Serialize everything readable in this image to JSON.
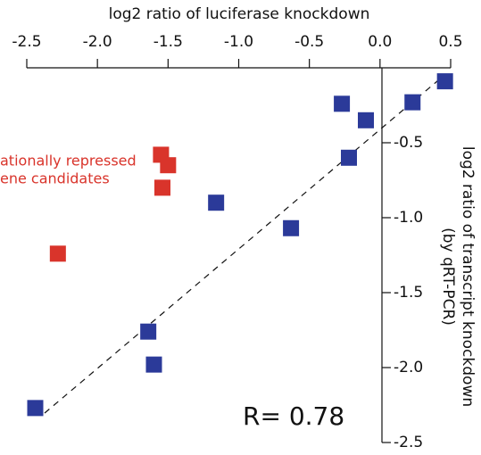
{
  "chart_data": {
    "type": "scatter",
    "x_label": "log2 ratio of luciferase knockdown",
    "y_label": [
      "log2 ratio of transcript knockdown",
      "(by qRT-PCR)"
    ],
    "xlim": [
      -2.5,
      0.5
    ],
    "xticks": [
      -2.5,
      {
        "value": -2.0,
        "label": "-2.0"
      },
      -1.5,
      {
        "value": -1.0,
        "label": "-1.0"
      },
      -0.5,
      {
        "value": 0.0,
        "label": "0.0"
      },
      0.5
    ],
    "ylim": [
      -2.5,
      0
    ],
    "yticks": [
      -0.5,
      {
        "value": -1.0,
        "label": "-1.0"
      },
      -1.5,
      {
        "value": -2.0,
        "label": "-2.0"
      },
      -2.5
    ],
    "annotations": [
      "ationally repressed",
      "ene candidates",
      "R= 0.78"
    ],
    "series": [
      {
        "color": "#2b3a99",
        "x": [
          0.46,
          0.23,
          -0.27,
          -0.1,
          -0.22,
          -1.16,
          -0.63,
          -1.64,
          -1.6,
          -2.44
        ],
        "y": [
          -0.09,
          -0.23,
          -0.24,
          -0.35,
          -0.6,
          -0.9,
          -1.07,
          -1.76,
          -1.98,
          -2.27
        ]
      },
      {
        "color": "#d9342b",
        "x": [
          -1.55,
          -1.5,
          -1.54,
          -2.28
        ],
        "y": [
          -0.58,
          -0.65,
          -0.8,
          -1.24
        ]
      }
    ]
  }
}
